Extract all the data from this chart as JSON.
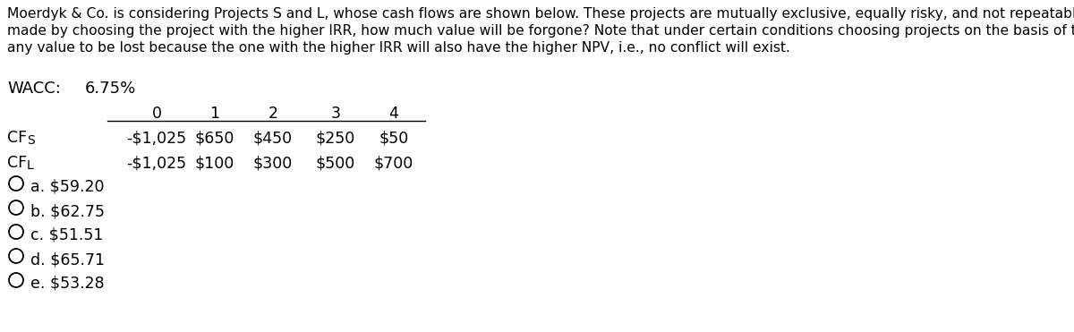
{
  "paragraph_lines": [
    "Moerdyk & Co. is considering Projects S and L, whose cash flows are shown below. These projects are mutually exclusive, equally risky, and not repeatable. If the decision is",
    "made by choosing the project with the higher IRR, how much value will be forgone? Note that under certain conditions choosing projects on the basis of the IRR will not cause",
    "any value to be lost because the one with the higher IRR will also have the higher NPV, i.e., no conflict will exist."
  ],
  "wacc_label": "WACC:",
  "wacc_value": "6.75%",
  "col_headers": [
    "0",
    "1",
    "2",
    "3",
    "4"
  ],
  "cf_s_label": "CF",
  "cf_s_sub": "S",
  "cf_l_label": "CF",
  "cf_l_sub": "L",
  "cf_s": [
    "-$1,025",
    "$650",
    "$450",
    "$250",
    "$50"
  ],
  "cf_l": [
    "-$1,025",
    "$100",
    "$300",
    "$500",
    "$700"
  ],
  "choices": [
    "a. $59.20",
    "b. $62.75",
    "c. $51.51",
    "d. $65.71",
    "e. $53.28"
  ],
  "bg_color": "#ffffff",
  "text_color": "#000000",
  "para_fontsize": 11.2,
  "table_fontsize": 12.5,
  "choice_fontsize": 12.5,
  "wacc_fontsize": 13.0
}
